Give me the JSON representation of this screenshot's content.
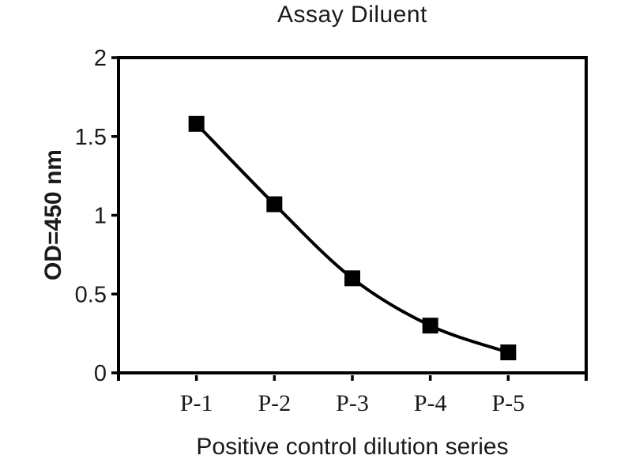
{
  "chart_data": {
    "type": "line",
    "title": "Assay Diluent",
    "xlabel": "Positive control dilution series",
    "ylabel": "OD=450 nm",
    "categories": [
      "P-1",
      "P-2",
      "P-3",
      "P-4",
      "P-5"
    ],
    "series": [
      {
        "name": "Assay Diluent",
        "values": [
          1.58,
          1.07,
          0.6,
          0.3,
          0.13
        ]
      }
    ],
    "ylim": [
      0,
      2
    ],
    "yticks": [
      0,
      0.5,
      1,
      1.5,
      2
    ],
    "ytick_labels": [
      "0",
      "0.5",
      "1",
      "1.5",
      "2"
    ],
    "grid": false,
    "legend": "none",
    "marker": "square",
    "line_color": "#000000",
    "marker_color": "#000000",
    "axis_color": "#000000",
    "text_color": "#1a1a1a",
    "background": "#ffffff"
  }
}
